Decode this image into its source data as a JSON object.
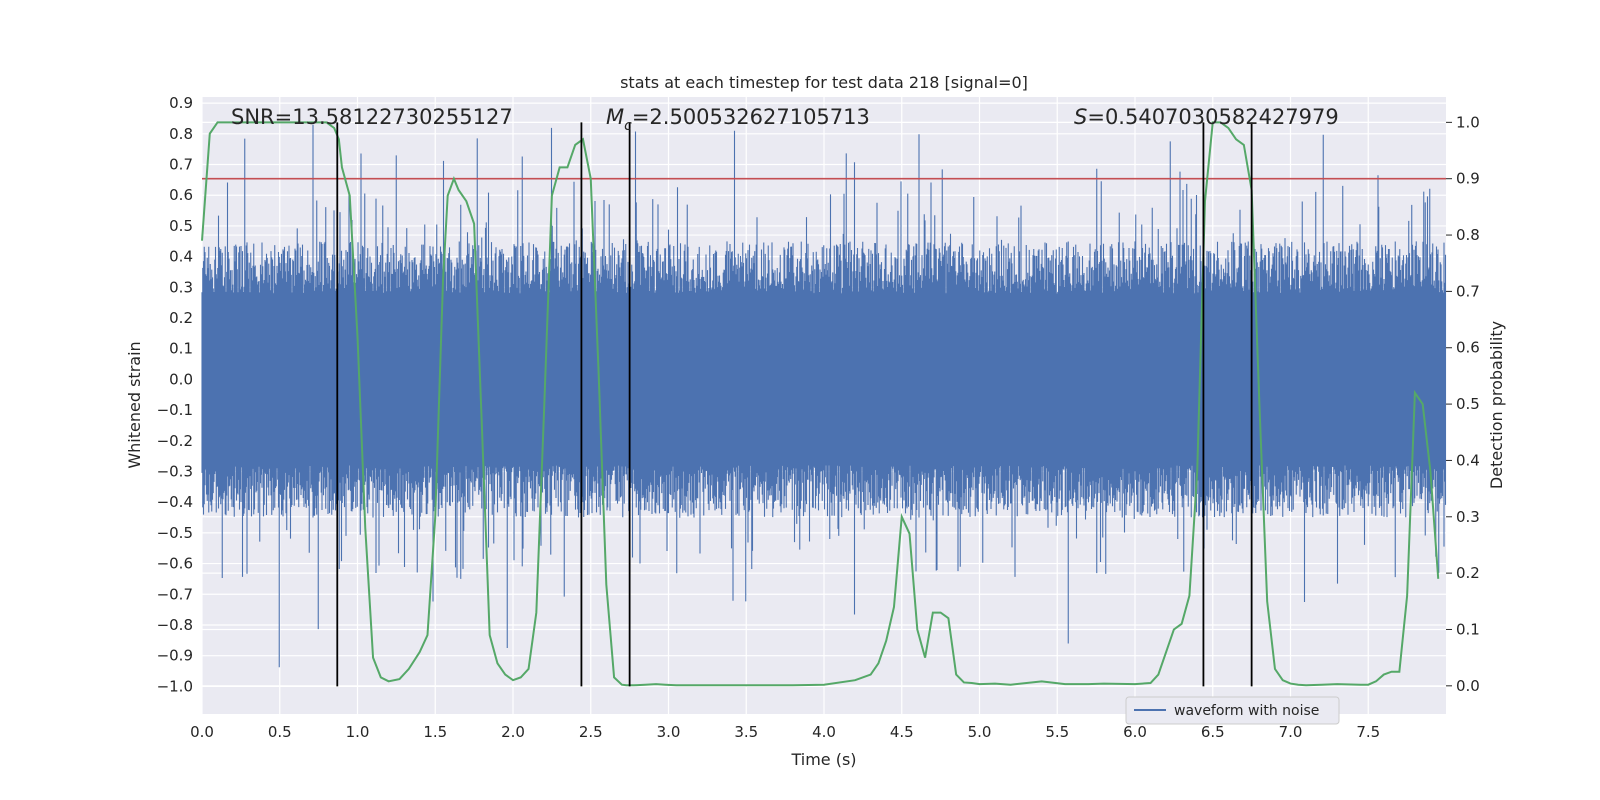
{
  "chart_data": {
    "type": "line",
    "title": "stats at each timestep for test data 218 [signal=0]",
    "xlabel": "Time (s)",
    "ylabel": "Whitened strain",
    "y2label": "Detection probability",
    "xlim": [
      0,
      8
    ],
    "ylim": [
      -1.09,
      0.92
    ],
    "y2lim": [
      -0.05,
      1.045
    ],
    "x_ticks": [
      "0.0",
      "0.5",
      "1.0",
      "1.5",
      "2.0",
      "2.5",
      "3.0",
      "3.5",
      "4.0",
      "4.5",
      "5.0",
      "5.5",
      "6.0",
      "6.5",
      "7.0",
      "7.5"
    ],
    "y_ticks": [
      "0.9",
      "0.8",
      "0.7",
      "0.6",
      "0.5",
      "0.4",
      "0.3",
      "0.2",
      "0.1",
      "0.0",
      "−0.1",
      "−0.2",
      "−0.3",
      "−0.4",
      "−0.5",
      "−0.6",
      "−0.7",
      "−0.8",
      "−0.9",
      "−1.0"
    ],
    "y2_ticks": [
      "0.0",
      "0.1",
      "0.2",
      "0.3",
      "0.4",
      "0.5",
      "0.6",
      "0.7",
      "0.8",
      "0.9",
      "1.0"
    ],
    "grid": true,
    "legend": {
      "placement": "lower-right",
      "entries": [
        "waveform with noise"
      ]
    },
    "annotations": {
      "snr": "SNR=13.58122730255127",
      "mc_symbol": "M",
      "mc_sub": "c",
      "mc_value": "=2.500532627105713",
      "s_symbol": "S",
      "s_value": "=0.5407030582427979"
    },
    "threshold": {
      "y2": 0.9,
      "color": "#c44e52"
    },
    "vertical_lines_x": [
      0.87,
      2.44,
      2.75,
      6.44,
      6.75
    ],
    "colors": {
      "waveform": "#4c72b0",
      "probability": "#55a868",
      "threshold": "#c44e52",
      "markers": "#000000",
      "background": "#eaeaf2"
    },
    "series": [
      {
        "name": "waveform with noise",
        "kind": "noise",
        "core_amplitude": 0.28,
        "typical_peak": 0.45,
        "max_abs": 1.0
      },
      {
        "kind": "probability",
        "axis": "y2",
        "x": [
          0.0,
          0.05,
          0.1,
          0.15,
          0.2,
          0.3,
          0.4,
          0.5,
          0.6,
          0.7,
          0.8,
          0.85,
          0.88,
          0.9,
          0.95,
          1.0,
          1.05,
          1.1,
          1.15,
          1.2,
          1.27,
          1.33,
          1.4,
          1.45,
          1.5,
          1.55,
          1.58,
          1.62,
          1.65,
          1.7,
          1.75,
          1.8,
          1.85,
          1.9,
          1.95,
          2.0,
          2.05,
          2.1,
          2.15,
          2.2,
          2.25,
          2.3,
          2.35,
          2.4,
          2.45,
          2.5,
          2.55,
          2.6,
          2.65,
          2.7,
          2.73,
          2.78,
          2.85,
          2.92,
          2.98,
          3.05,
          3.2,
          3.35,
          3.45,
          3.6,
          3.8,
          4.0,
          4.2,
          4.3,
          4.35,
          4.4,
          4.45,
          4.5,
          4.55,
          4.6,
          4.65,
          4.7,
          4.75,
          4.8,
          4.85,
          4.9,
          4.95,
          5.0,
          5.1,
          5.2,
          5.4,
          5.55,
          5.7,
          5.8,
          6.0,
          6.1,
          6.15,
          6.2,
          6.25,
          6.3,
          6.35,
          6.4,
          6.45,
          6.5,
          6.55,
          6.6,
          6.65,
          6.7,
          6.75,
          6.8,
          6.85,
          6.9,
          6.95,
          7.0,
          7.05,
          7.1,
          7.2,
          7.3,
          7.45,
          7.5,
          7.55,
          7.6,
          7.65,
          7.7,
          7.75,
          7.8,
          7.85,
          7.9,
          7.95
        ],
        "y": [
          0.79,
          0.98,
          1.0,
          1.0,
          1.0,
          1.0,
          1.0,
          1.0,
          1.0,
          1.0,
          1.0,
          0.99,
          0.97,
          0.92,
          0.87,
          0.62,
          0.28,
          0.05,
          0.015,
          0.008,
          0.012,
          0.03,
          0.06,
          0.09,
          0.3,
          0.72,
          0.87,
          0.9,
          0.88,
          0.86,
          0.82,
          0.46,
          0.09,
          0.04,
          0.02,
          0.01,
          0.015,
          0.03,
          0.13,
          0.49,
          0.87,
          0.92,
          0.92,
          0.96,
          0.97,
          0.9,
          0.56,
          0.18,
          0.015,
          0.002,
          0.001,
          0.001,
          0.002,
          0.003,
          0.002,
          0.001,
          0.001,
          0.001,
          0.001,
          0.001,
          0.001,
          0.002,
          0.01,
          0.02,
          0.04,
          0.08,
          0.14,
          0.3,
          0.27,
          0.1,
          0.05,
          0.13,
          0.13,
          0.12,
          0.02,
          0.006,
          0.005,
          0.003,
          0.004,
          0.002,
          0.008,
          0.003,
          0.003,
          0.004,
          0.003,
          0.005,
          0.02,
          0.06,
          0.1,
          0.11,
          0.16,
          0.38,
          0.86,
          1.0,
          1.0,
          0.99,
          0.97,
          0.96,
          0.88,
          0.5,
          0.15,
          0.03,
          0.01,
          0.004,
          0.002,
          0.001,
          0.002,
          0.003,
          0.002,
          0.002,
          0.008,
          0.02,
          0.025,
          0.025,
          0.16,
          0.52,
          0.5,
          0.38,
          0.19
        ]
      }
    ]
  }
}
